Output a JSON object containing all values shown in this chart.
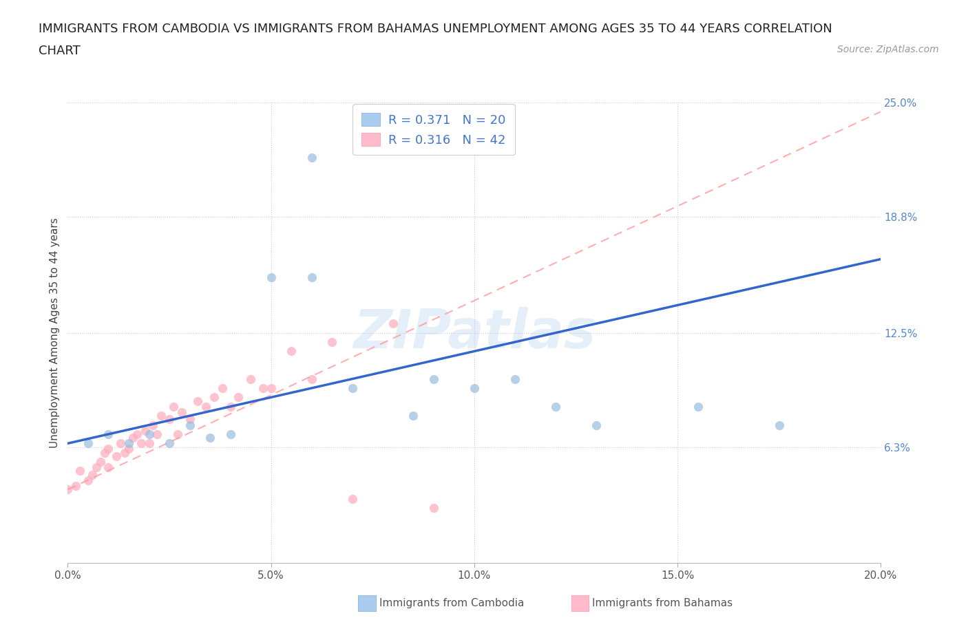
{
  "title_line1": "IMMIGRANTS FROM CAMBODIA VS IMMIGRANTS FROM BAHAMAS UNEMPLOYMENT AMONG AGES 35 TO 44 YEARS CORRELATION",
  "title_line2": "CHART",
  "source": "Source: ZipAtlas.com",
  "ylabel": "Unemployment Among Ages 35 to 44 years",
  "watermark": "ZIPatlas",
  "xlim": [
    0.0,
    0.2
  ],
  "ylim": [
    0.0,
    0.25
  ],
  "xticks": [
    0.0,
    0.05,
    0.1,
    0.15,
    0.2
  ],
  "yticks_right": [
    0.063,
    0.125,
    0.188,
    0.25
  ],
  "ytick_labels_right": [
    "6.3%",
    "12.5%",
    "18.8%",
    "25.0%"
  ],
  "xtick_labels": [
    "0.0%",
    "5.0%",
    "10.0%",
    "15.0%",
    "20.0%"
  ],
  "color_cambodia_scatter": "#99BBDD",
  "color_bahamas_scatter": "#FFAABB",
  "color_cambodia_line": "#3366CC",
  "color_bahamas_line": "#FF9999",
  "color_cambodia_legend": "#AACCEE",
  "color_bahamas_legend": "#FFBBCC",
  "background_color": "#FFFFFF",
  "title_fontsize": 13,
  "axis_label_fontsize": 11,
  "tick_fontsize": 11,
  "legend_fontsize": 13,
  "source_fontsize": 10,
  "scatter_size": 90,
  "scatter_alpha": 0.7,
  "cam_x": [
    0.005,
    0.01,
    0.015,
    0.02,
    0.025,
    0.03,
    0.035,
    0.04,
    0.05,
    0.06,
    0.085,
    0.1,
    0.11,
    0.12,
    0.13,
    0.155,
    0.175,
    0.06,
    0.09,
    0.07
  ],
  "cam_y": [
    0.065,
    0.07,
    0.065,
    0.07,
    0.065,
    0.075,
    0.068,
    0.07,
    0.155,
    0.22,
    0.08,
    0.095,
    0.1,
    0.085,
    0.075,
    0.085,
    0.075,
    0.155,
    0.1,
    0.095
  ],
  "bah_x": [
    0.0,
    0.002,
    0.003,
    0.005,
    0.006,
    0.007,
    0.008,
    0.009,
    0.01,
    0.01,
    0.012,
    0.013,
    0.014,
    0.015,
    0.016,
    0.017,
    0.018,
    0.019,
    0.02,
    0.021,
    0.022,
    0.023,
    0.025,
    0.026,
    0.027,
    0.028,
    0.03,
    0.032,
    0.034,
    0.036,
    0.038,
    0.04,
    0.042,
    0.045,
    0.048,
    0.05,
    0.055,
    0.06,
    0.065,
    0.07,
    0.08,
    0.09
  ],
  "bah_y": [
    0.04,
    0.042,
    0.05,
    0.045,
    0.048,
    0.052,
    0.055,
    0.06,
    0.052,
    0.062,
    0.058,
    0.065,
    0.06,
    0.062,
    0.068,
    0.07,
    0.065,
    0.072,
    0.065,
    0.075,
    0.07,
    0.08,
    0.078,
    0.085,
    0.07,
    0.082,
    0.078,
    0.088,
    0.085,
    0.09,
    0.095,
    0.085,
    0.09,
    0.1,
    0.095,
    0.095,
    0.115,
    0.1,
    0.12,
    0.035,
    0.13,
    0.03
  ]
}
